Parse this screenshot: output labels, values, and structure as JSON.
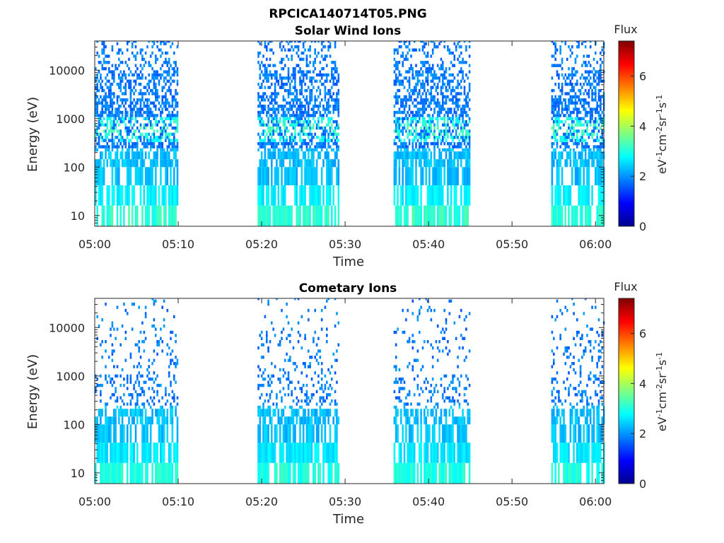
{
  "figure": {
    "title": "RPCICA140714T05.PNG"
  },
  "colorbar": {
    "label": "Flux",
    "unit_prefix": "eV",
    "ticks": [
      "0",
      "2",
      "4",
      "6"
    ],
    "range": [
      0,
      7.4
    ],
    "colormap": "jet",
    "colors": [
      "#00008f",
      "#0000ff",
      "#0080ff",
      "#00ffff",
      "#80ff80",
      "#ffff00",
      "#ff8000",
      "#ff0000",
      "#800000"
    ]
  },
  "chart_data": [
    {
      "type": "heatmap",
      "title": "Solar Wind Ions",
      "xlabel": "Time",
      "ylabel": "Energy (eV)",
      "x_tick_labels": [
        "05:00",
        "05:10",
        "05:20",
        "05:30",
        "05:40",
        "05:50",
        "06:00"
      ],
      "x_range_minutes": [
        0,
        61
      ],
      "y_scale": "log",
      "y_tick_labels": [
        "10",
        "100",
        "1000",
        "10000"
      ],
      "ylim": [
        6,
        40000
      ],
      "data_intervals_minutes": [
        [
          0,
          9.8
        ],
        [
          19.5,
          29.2
        ],
        [
          35.8,
          45
        ],
        [
          54.7,
          61
        ]
      ],
      "flux_range": [
        1.5,
        4.0
      ],
      "flux_peak_bands_eV": [
        [
          10,
          3.1
        ],
        [
          25,
          2.7
        ],
        [
          600,
          3.3
        ]
      ]
    },
    {
      "type": "heatmap",
      "title": "Cometary Ions",
      "xlabel": "Time",
      "ylabel": "Energy (eV)",
      "x_tick_labels": [
        "05:00",
        "05:10",
        "05:20",
        "05:30",
        "05:40",
        "05:50",
        "06:00"
      ],
      "x_range_minutes": [
        0,
        61
      ],
      "y_scale": "log",
      "y_tick_labels": [
        "10",
        "100",
        "1000",
        "10000"
      ],
      "ylim": [
        6,
        40000
      ],
      "data_intervals_minutes": [
        [
          0,
          9.8
        ],
        [
          19.5,
          29.2
        ],
        [
          35.8,
          45
        ],
        [
          54.7,
          61
        ]
      ],
      "flux_range": [
        1.5,
        3.2
      ],
      "flux_peak_bands_eV": [
        [
          10,
          3.0
        ],
        [
          25,
          2.6
        ]
      ]
    }
  ]
}
